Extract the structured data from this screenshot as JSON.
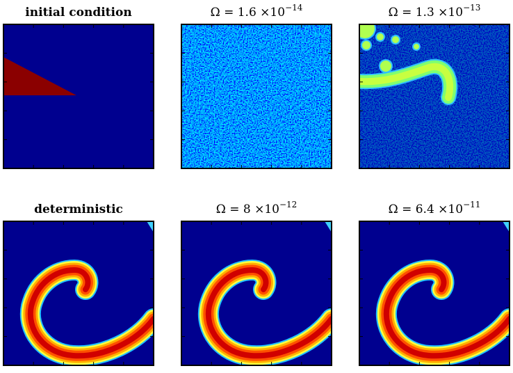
{
  "panels": [
    {
      "title": "initial condition"
    },
    {
      "title_base": "Ω = 1.6 ×10",
      "title_exponent": "−14"
    },
    {
      "title_base": "Ω = 1.3 ×10",
      "title_exponent": "−13"
    },
    {
      "title": "deterministic"
    },
    {
      "title_base": "Ω = 8 ×10",
      "title_exponent": "−12"
    },
    {
      "title_base": "Ω = 6.4 ×10",
      "title_exponent": "−11"
    }
  ]
}
